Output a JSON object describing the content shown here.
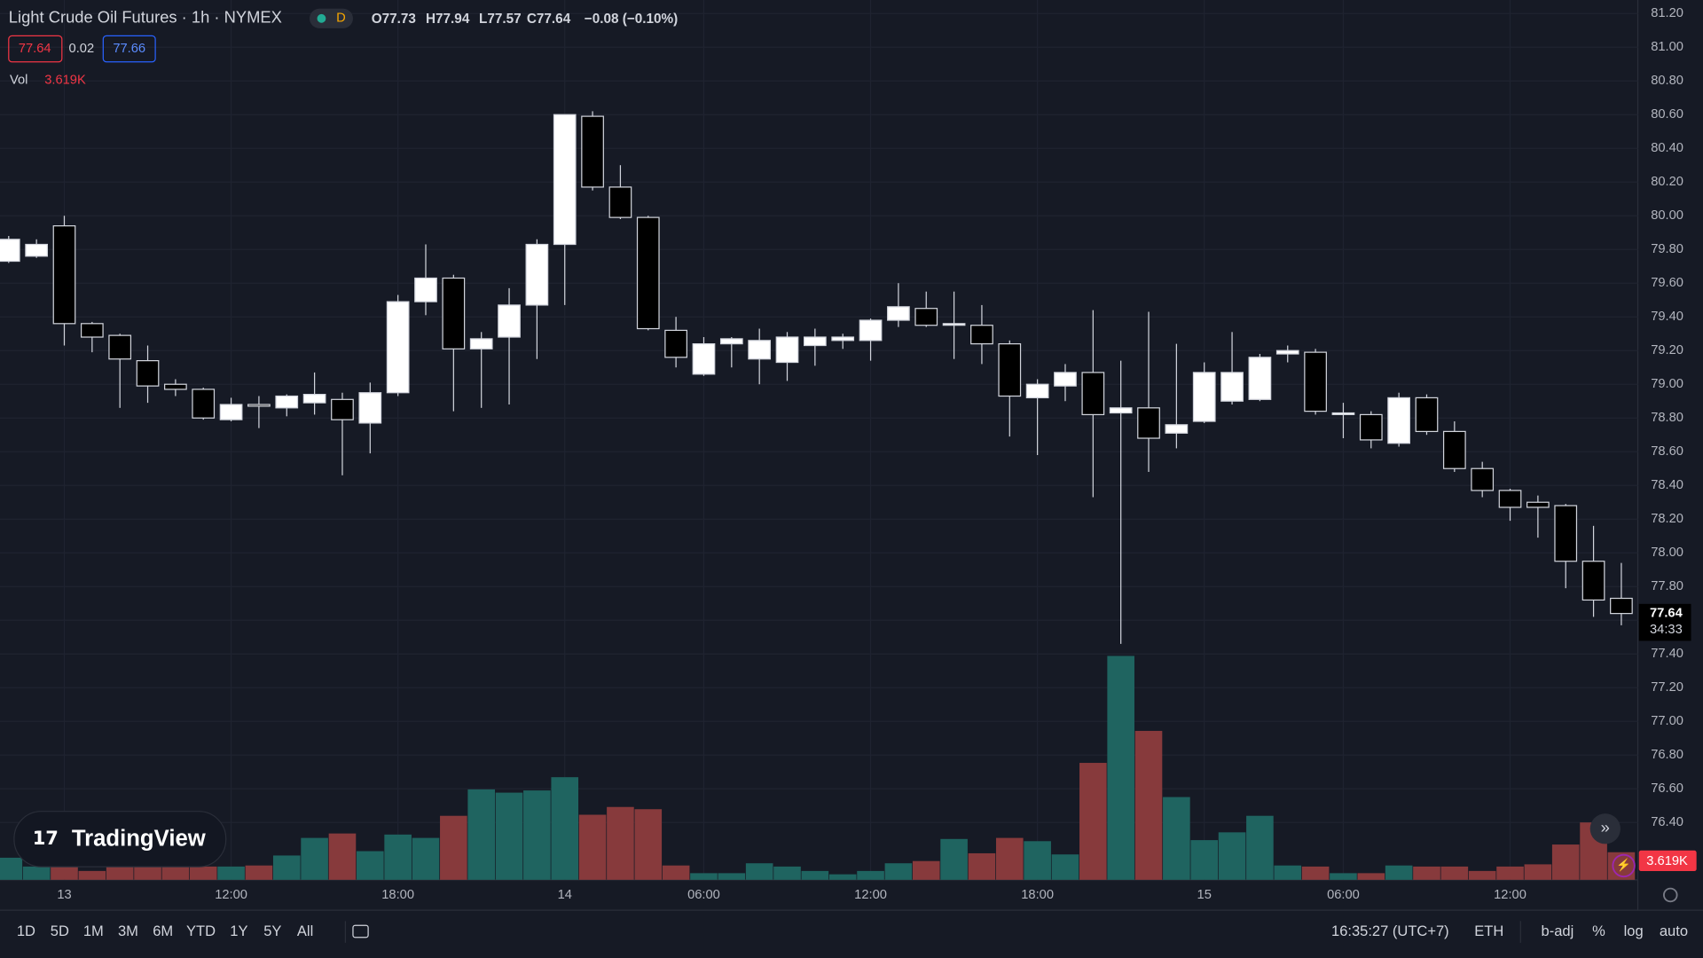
{
  "chart_data": {
    "type": "candlestick",
    "title": "Light Crude Oil Futures · 1h · NYMEX",
    "categories": [
      null,
      null,
      "13",
      null,
      null,
      null,
      null,
      null,
      "12:00",
      null,
      null,
      null,
      null,
      null,
      "18:00",
      null,
      null,
      null,
      null,
      null,
      "14",
      null,
      null,
      null,
      null,
      "06:00",
      null,
      null,
      null,
      null,
      null,
      "12:00",
      null,
      null,
      null,
      null,
      null,
      "18:00",
      null,
      null,
      null,
      null,
      null,
      "15",
      null,
      null,
      null,
      null,
      "06:00",
      null,
      null,
      null,
      null,
      null,
      "12:00",
      null,
      null,
      null,
      null
    ],
    "open": [
      79.73,
      79.76,
      79.94,
      79.36,
      79.29,
      79.14,
      79.0,
      78.97,
      78.79,
      78.88,
      78.86,
      78.89,
      78.91,
      78.77,
      78.95,
      79.49,
      79.63,
      79.21,
      79.28,
      79.47,
      79.83,
      80.59,
      80.17,
      79.99,
      79.32,
      79.06,
      79.24,
      79.15,
      79.13,
      79.23,
      79.26,
      79.26,
      79.38,
      79.45,
      79.36,
      79.35,
      79.24,
      78.92,
      78.99,
      79.07,
      78.83,
      78.86,
      78.71,
      78.78,
      78.9,
      78.91,
      79.18,
      79.19,
      78.83,
      78.82,
      78.65,
      78.92,
      78.72,
      78.5,
      78.37,
      78.3,
      78.28,
      77.95,
      77.73
    ],
    "high": [
      79.88,
      79.86,
      80.0,
      79.37,
      79.3,
      79.23,
      79.03,
      78.98,
      78.92,
      78.93,
      78.94,
      79.07,
      78.95,
      79.01,
      79.53,
      79.83,
      79.65,
      79.31,
      79.57,
      79.86,
      80.6,
      80.62,
      80.3,
      80.0,
      79.4,
      79.28,
      79.28,
      79.33,
      79.31,
      79.33,
      79.3,
      79.39,
      79.6,
      79.55,
      79.55,
      79.47,
      79.26,
      79.03,
      79.12,
      79.44,
      79.14,
      79.43,
      79.24,
      79.13,
      79.31,
      79.18,
      79.23,
      79.21,
      78.89,
      78.84,
      78.95,
      78.94,
      78.78,
      78.54,
      78.38,
      78.34,
      78.29,
      78.16,
      77.94
    ],
    "low": [
      79.72,
      79.75,
      79.23,
      79.19,
      78.86,
      78.89,
      78.93,
      78.79,
      78.78,
      78.74,
      78.81,
      78.82,
      78.46,
      78.59,
      78.93,
      79.41,
      78.84,
      78.86,
      78.88,
      79.15,
      79.47,
      80.15,
      79.98,
      79.32,
      79.1,
      79.05,
      79.1,
      79.0,
      79.02,
      79.11,
      79.21,
      79.14,
      79.34,
      79.34,
      79.15,
      79.12,
      78.69,
      78.58,
      78.9,
      78.33,
      77.46,
      78.48,
      78.62,
      78.77,
      78.88,
      78.9,
      79.13,
      78.82,
      78.68,
      78.62,
      78.63,
      78.7,
      78.48,
      78.33,
      78.19,
      78.09,
      77.79,
      77.62,
      77.57
    ],
    "close": [
      79.86,
      79.83,
      79.36,
      79.28,
      79.15,
      78.99,
      78.97,
      78.8,
      78.88,
      78.87,
      78.93,
      78.94,
      78.79,
      78.95,
      79.49,
      79.63,
      79.21,
      79.27,
      79.47,
      79.83,
      80.6,
      80.17,
      79.99,
      79.33,
      79.16,
      79.24,
      79.27,
      79.26,
      79.28,
      79.28,
      79.28,
      79.38,
      79.46,
      79.35,
      79.36,
      79.24,
      78.93,
      79.0,
      79.07,
      78.82,
      78.86,
      78.68,
      78.76,
      79.07,
      79.07,
      79.16,
      79.2,
      78.84,
      78.83,
      78.67,
      78.92,
      78.72,
      78.5,
      78.37,
      78.27,
      78.27,
      77.95,
      77.72,
      77.64
    ],
    "volume": {
      "axis": "y2",
      "up_color": "#1f6460",
      "down_color": "#873a3c",
      "values": [
        2.9,
        1.74,
        1.74,
        1.16,
        1.88,
        1.88,
        1.88,
        1.74,
        1.74,
        1.88,
        3.19,
        5.5,
        6.08,
        3.76,
        5.94,
        5.5,
        8.4,
        11.87,
        11.44,
        11.73,
        13.47,
        8.54,
        9.56,
        9.27,
        1.88,
        0.87,
        0.87,
        2.17,
        1.74,
        1.16,
        0.72,
        1.16,
        2.17,
        2.46,
        5.36,
        3.48,
        5.5,
        5.07,
        3.33,
        15.35,
        29.39,
        19.55,
        10.86,
        5.21,
        6.23,
        8.4,
        1.88,
        1.74,
        0.87,
        0.87,
        1.88,
        1.74,
        1.74,
        1.16,
        1.74,
        2.03,
        4.63,
        7.53,
        3.619
      ]
    },
    "up_color": "#ffffff",
    "down_color": "#000000",
    "grid": true,
    "ylim": [
      76.06,
      81.28
    ],
    "y2lim": [
      0,
      115.5
    ],
    "yticks": [
      {
        "value": 76.4,
        "label": "76.40"
      },
      {
        "value": 76.6,
        "label": "76.60"
      },
      {
        "value": 76.8,
        "label": "76.80"
      },
      {
        "value": 77.0,
        "label": "77.00"
      },
      {
        "value": 77.2,
        "label": "77.20"
      },
      {
        "value": 77.4,
        "label": "77.40"
      },
      {
        "value": 77.6,
        "label": "77.60"
      },
      {
        "value": 77.8,
        "label": "77.80"
      },
      {
        "value": 78.0,
        "label": "78.00"
      },
      {
        "value": 78.2,
        "label": "78.20"
      },
      {
        "value": 78.4,
        "label": "78.40"
      },
      {
        "value": 78.6,
        "label": "78.60"
      },
      {
        "value": 78.8,
        "label": "78.80"
      },
      {
        "value": 79.0,
        "label": "79.00"
      },
      {
        "value": 79.2,
        "label": "79.20"
      },
      {
        "value": 79.4,
        "label": "79.40"
      },
      {
        "value": 79.6,
        "label": "79.60"
      },
      {
        "value": 79.8,
        "label": "79.80"
      },
      {
        "value": 80.0,
        "label": "80.00"
      },
      {
        "value": 80.2,
        "label": "80.20"
      },
      {
        "value": 80.4,
        "label": "80.40"
      },
      {
        "value": 80.6,
        "label": "80.60"
      },
      {
        "value": 80.8,
        "label": "80.80"
      },
      {
        "value": 81.0,
        "label": "81.00"
      },
      {
        "value": 81.2,
        "label": "81.20"
      }
    ]
  },
  "header": {
    "bid": "77.64",
    "spread": "0.02",
    "ask": "77.66",
    "session_badge": "D",
    "ohlc": [
      "O77.73",
      "H77.94",
      "L77.57",
      "C77.64",
      "−0.08 (−0.10%)"
    ],
    "vol_label": "Vol",
    "vol_value": "3.619K",
    "countdown": "34:33",
    "logo": "TradingView"
  },
  "toolbar": {
    "ranges": [
      "1D",
      "5D",
      "1M",
      "3M",
      "6M",
      "YTD",
      "1Y",
      "5Y",
      "All"
    ],
    "clock": "16:35:27 (UTC+7)",
    "session": "ETH",
    "options": [
      "b-adj",
      "%",
      "log",
      "auto"
    ]
  }
}
